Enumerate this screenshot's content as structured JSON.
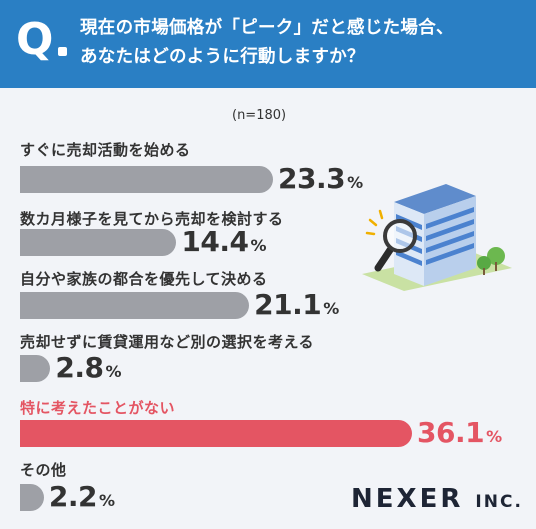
{
  "header": {
    "q": "Q",
    "line1": "現在の市場価格が「ピーク」だと感じた場合、",
    "line2": "あなたはどのように行動しますか？"
  },
  "sample": "(n=180)",
  "brand": {
    "name": "NEXER",
    "suffix": "INC."
  },
  "colors": {
    "header": "#2a7fc4",
    "bar": "#9ea0a6",
    "highlight": "#e45563",
    "background": "#f2f4f8"
  },
  "chart_data": {
    "type": "bar",
    "orientation": "horizontal",
    "unit": "%",
    "categories": [
      "すぐに売却活動を始める",
      "数カ月様子を見てから売却を検討する",
      "自分や家族の都合を優先して決める",
      "売却せずに賃貸運用など別の選択を考える",
      "特に考えたことがない",
      "その他"
    ],
    "values": [
      23.3,
      14.4,
      21.1,
      2.8,
      36.1,
      2.2
    ],
    "value_labels": [
      "23.3",
      "14.4",
      "21.1",
      "2.8",
      "36.1",
      "2.2"
    ],
    "highlight_index": 4,
    "xlim": [
      0,
      36.1
    ]
  }
}
